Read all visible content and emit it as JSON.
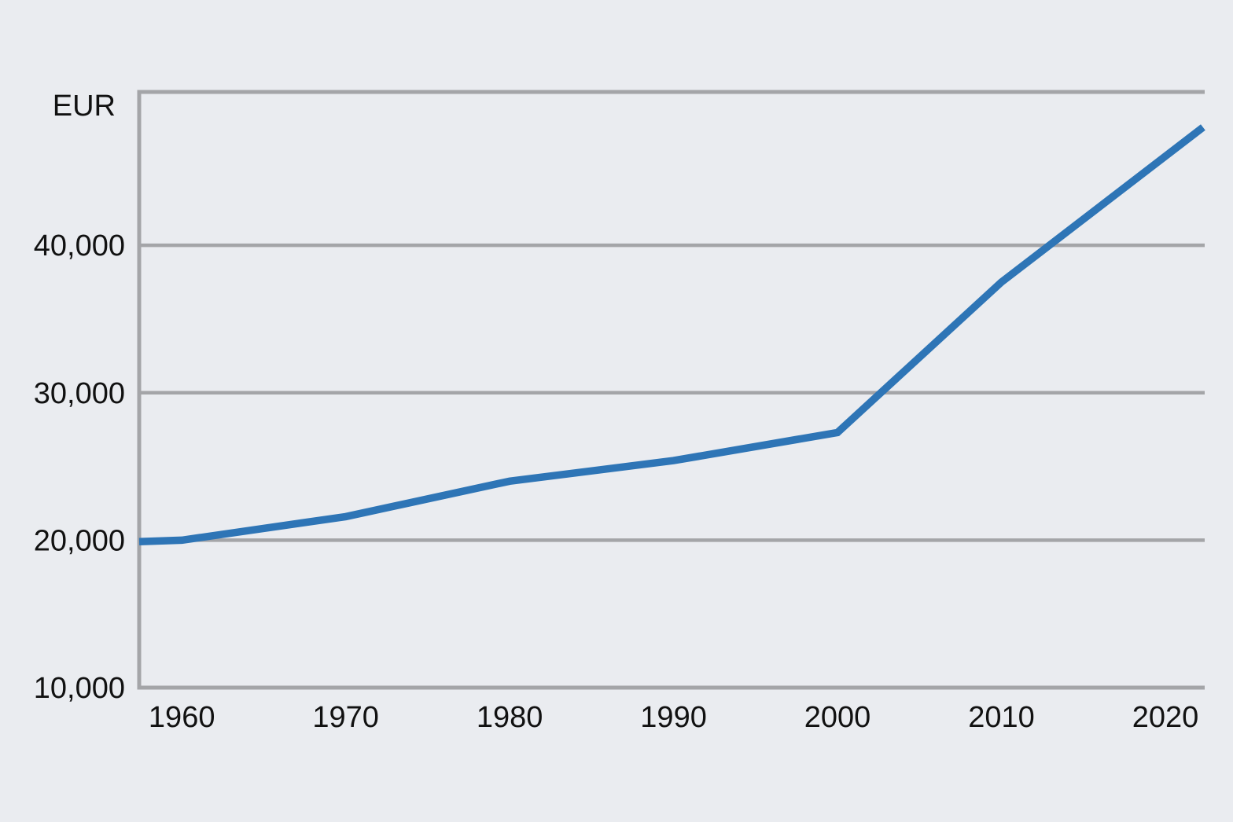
{
  "page": {
    "background_color": "#EAECF0"
  },
  "chart_data": {
    "type": "line",
    "title": "",
    "ylabel": "EUR",
    "xlabel": "",
    "legend": "none",
    "grid": "horizontal",
    "line_color": "#2E75B6",
    "grid_color": "#A4A5A8",
    "text_color": "#111111",
    "series": [
      {
        "name": "EUR",
        "x": [
          1957.4,
          1960,
          1970,
          1980,
          1990,
          2000,
          2010,
          2022.3
        ],
        "values": [
          19900,
          20000,
          21600,
          24000,
          25400,
          27300,
          37500,
          48000
        ]
      }
    ],
    "xlim": [
      1957.4,
      2022.4
    ],
    "ylim": [
      10000,
      50400
    ],
    "xticks": [
      {
        "value": 1960,
        "label": "1960"
      },
      {
        "value": 1970,
        "label": "1970"
      },
      {
        "value": 1980,
        "label": "1980"
      },
      {
        "value": 1990,
        "label": "1990"
      },
      {
        "value": 2000,
        "label": "2000"
      },
      {
        "value": 2010,
        "label": "2010"
      },
      {
        "value": 2020,
        "label": "2020"
      }
    ],
    "yticks": [
      {
        "value": 10000,
        "label": "10,000"
      },
      {
        "value": 20000,
        "label": "20,000"
      },
      {
        "value": 30000,
        "label": "30,000"
      },
      {
        "value": 40000,
        "label": "40,000"
      }
    ]
  }
}
